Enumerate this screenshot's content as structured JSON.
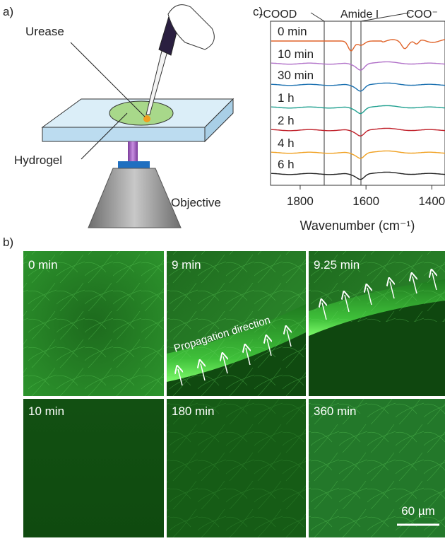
{
  "panel_a": {
    "label": "a)",
    "urease": "Urease",
    "hydrogel": "Hydrogel",
    "objective": "Objective"
  },
  "panel_c": {
    "label": "c)",
    "annotations": [
      "-COOD",
      "Amide I",
      "COO⁻"
    ],
    "traces": [
      "0 min",
      "10 min",
      "30 min",
      "1 h",
      "2 h",
      "4 h",
      "6 h"
    ],
    "x_axis": {
      "title": "Wavenumber (cm⁻¹)",
      "xlim": [
        1890,
        1360
      ],
      "xticks": [
        1800,
        1600,
        1400
      ]
    }
  },
  "panel_b": {
    "label": "b)",
    "images": [
      "0 min",
      "9 min",
      "9.25 min",
      "10 min",
      "180 min",
      "360 min"
    ],
    "annotation": "Propagation direction",
    "scale_bar": "60 µm"
  }
}
